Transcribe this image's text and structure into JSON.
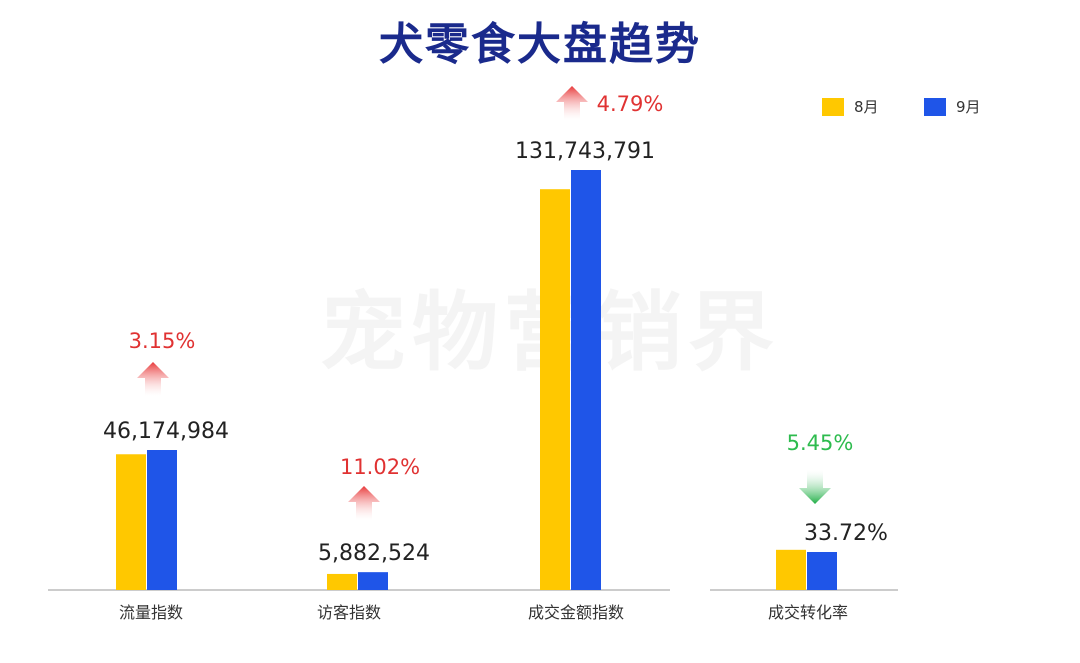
{
  "title": "犬零食大盘趋势",
  "watermark": "宠物营销界",
  "colors": {
    "aug": "#ffc800",
    "sep": "#1f55e8",
    "title": "#1a2a8c",
    "up": "#e03232",
    "down": "#2dbb4e"
  },
  "chart_data": {
    "type": "bar",
    "series": [
      {
        "name": "8月",
        "color": "#ffc800"
      },
      {
        "name": "9月",
        "color": "#1f55e8"
      }
    ],
    "groups": [
      {
        "category": "流量指数",
        "aug": 44766700,
        "sep": 46174984,
        "label": "46,174,984",
        "change": "3.15%",
        "direction": "up"
      },
      {
        "category": "访客指数",
        "aug": 5298400,
        "sep": 5882524,
        "label": "5,882,524",
        "change": "11.02%",
        "direction": "up"
      },
      {
        "category": "成交金额指数",
        "aug": 125720000,
        "sep": 131743791,
        "label": "131,743,791",
        "change": "4.79%",
        "direction": "up"
      },
      {
        "category": "成交转化率",
        "aug": 35.66,
        "sep": 33.72,
        "label": "33.72%",
        "change": "5.45%",
        "direction": "down"
      }
    ],
    "legend_position": "top-right",
    "grid": false
  }
}
